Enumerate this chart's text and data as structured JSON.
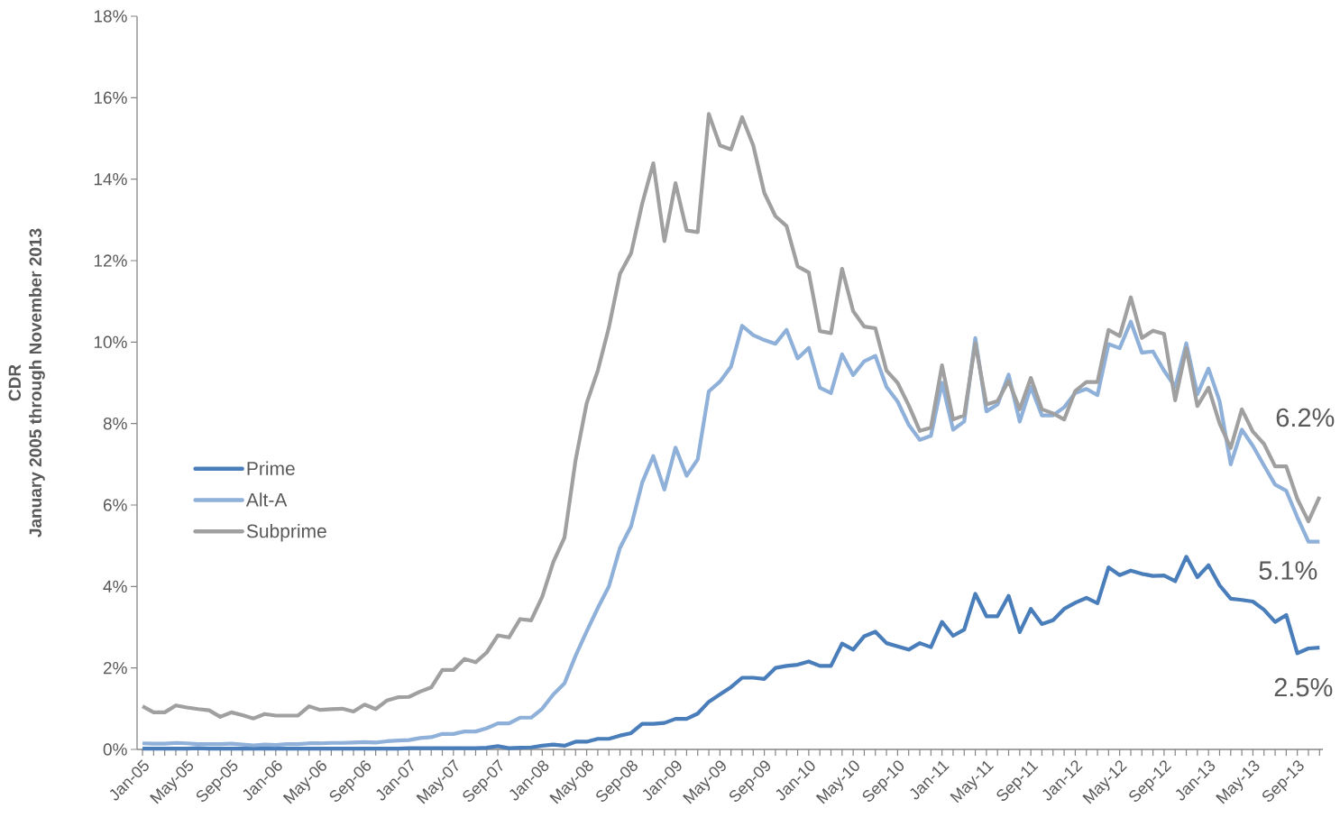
{
  "chart_data": {
    "type": "line",
    "ylabel": "CDR\nJanuary 2005 through November 2013",
    "categories": [
      "Jan-05",
      null,
      null,
      null,
      "May-05",
      null,
      null,
      null,
      "Sep-05",
      null,
      null,
      null,
      "Jan-06",
      null,
      null,
      null,
      "May-06",
      null,
      null,
      null,
      "Sep-06",
      null,
      null,
      null,
      "Jan-07",
      null,
      null,
      null,
      "May-07",
      null,
      null,
      null,
      "Sep-07",
      null,
      null,
      null,
      "Jan-08",
      null,
      null,
      null,
      "May-08",
      null,
      null,
      null,
      "Sep-08",
      null,
      null,
      null,
      "Jan-09",
      null,
      null,
      null,
      "May-09",
      null,
      null,
      null,
      "Sep-09",
      null,
      null,
      null,
      "Jan-10",
      null,
      null,
      null,
      "May-10",
      null,
      null,
      null,
      "Sep-10",
      null,
      null,
      null,
      "Jan-11",
      null,
      null,
      null,
      "May-11",
      null,
      null,
      null,
      "Sep-11",
      null,
      null,
      null,
      "Jan-12",
      null,
      null,
      null,
      "May-12",
      null,
      null,
      null,
      "Sep-12",
      null,
      null,
      null,
      "Jan-13",
      null,
      null,
      null,
      "May-13",
      null,
      null,
      null,
      "Sep-13",
      null,
      null
    ],
    "series": [
      {
        "name": "Prime",
        "color": "#4a7ebb",
        "values": [
          0.02,
          0.02,
          0.02,
          0.02,
          0.02,
          0.03,
          0.02,
          0.02,
          0.02,
          0.02,
          0.02,
          0.02,
          0.02,
          0.02,
          0.02,
          0.02,
          0.02,
          0.02,
          0.02,
          0.02,
          0.02,
          0.02,
          0.02,
          0.02,
          0.03,
          0.03,
          0.03,
          0.03,
          0.03,
          0.03,
          0.03,
          0.04,
          0.08,
          0.03,
          0.04,
          0.05,
          0.09,
          0.12,
          0.09,
          0.19,
          0.19,
          0.26,
          0.26,
          0.34,
          0.4,
          0.63,
          0.63,
          0.65,
          0.75,
          0.75,
          0.88,
          1.17,
          1.35,
          1.53,
          1.76,
          1.76,
          1.73,
          2.0,
          2.05,
          2.08,
          2.16,
          2.05,
          2.05,
          2.6,
          2.45,
          2.78,
          2.89,
          2.61,
          2.53,
          2.45,
          2.61,
          2.51,
          3.13,
          2.79,
          2.94,
          3.82,
          3.27,
          3.27,
          3.77,
          2.88,
          3.45,
          3.08,
          3.17,
          3.45,
          3.6,
          3.72,
          3.59,
          4.47,
          4.28,
          4.39,
          4.31,
          4.26,
          4.27,
          4.13,
          4.73,
          4.23,
          4.52,
          4.03,
          3.7,
          3.67,
          3.63,
          3.43,
          3.13,
          3.3,
          2.36,
          2.48,
          2.5
        ]
      },
      {
        "name": "Alt-A",
        "color": "#8eb0d9",
        "values": [
          0.15,
          0.14,
          0.14,
          0.16,
          0.15,
          0.13,
          0.13,
          0.13,
          0.14,
          0.12,
          0.1,
          0.12,
          0.11,
          0.13,
          0.13,
          0.15,
          0.15,
          0.16,
          0.16,
          0.17,
          0.18,
          0.17,
          0.2,
          0.22,
          0.23,
          0.28,
          0.3,
          0.38,
          0.38,
          0.44,
          0.44,
          0.52,
          0.64,
          0.64,
          0.78,
          0.78,
          1.0,
          1.35,
          1.62,
          2.3,
          2.9,
          3.47,
          4.0,
          4.95,
          5.48,
          6.55,
          7.2,
          6.38,
          7.41,
          6.72,
          7.12,
          8.79,
          9.03,
          9.4,
          10.4,
          10.17,
          10.05,
          9.96,
          10.3,
          9.6,
          9.86,
          8.88,
          8.75,
          9.7,
          9.19,
          9.53,
          9.66,
          8.9,
          8.54,
          7.97,
          7.6,
          7.7,
          9.0,
          7.85,
          8.05,
          10.1,
          8.3,
          8.47,
          9.2,
          8.05,
          8.9,
          8.2,
          8.2,
          8.4,
          8.75,
          8.85,
          8.7,
          9.95,
          9.85,
          10.5,
          9.74,
          9.77,
          9.3,
          8.9,
          9.97,
          8.72,
          9.35,
          8.55,
          7.0,
          7.85,
          7.45,
          6.97,
          6.5,
          6.35,
          5.7,
          5.1,
          5.1
        ]
      },
      {
        "name": "Subprime",
        "color": "#a0a0a0",
        "values": [
          1.06,
          0.91,
          0.91,
          1.08,
          1.03,
          0.99,
          0.96,
          0.8,
          0.91,
          0.84,
          0.76,
          0.87,
          0.83,
          0.83,
          0.83,
          1.06,
          0.97,
          0.99,
          1.0,
          0.93,
          1.1,
          0.99,
          1.2,
          1.28,
          1.29,
          1.42,
          1.52,
          1.95,
          1.95,
          2.22,
          2.14,
          2.38,
          2.8,
          2.75,
          3.2,
          3.17,
          3.75,
          4.6,
          5.2,
          7.1,
          8.5,
          9.3,
          10.36,
          11.68,
          12.18,
          13.4,
          14.39,
          12.48,
          13.9,
          12.74,
          12.7,
          15.6,
          14.83,
          14.73,
          15.52,
          14.83,
          13.66,
          13.09,
          12.85,
          11.86,
          11.71,
          10.27,
          10.22,
          11.8,
          10.76,
          10.38,
          10.34,
          9.3,
          9.0,
          8.45,
          7.82,
          7.9,
          9.43,
          8.1,
          8.2,
          9.97,
          8.47,
          8.55,
          9.05,
          8.35,
          9.12,
          8.35,
          8.25,
          8.1,
          8.8,
          9.02,
          9.02,
          10.3,
          10.15,
          11.1,
          10.1,
          10.28,
          10.2,
          8.57,
          9.85,
          8.43,
          8.88,
          8.0,
          7.4,
          8.35,
          7.8,
          7.5,
          6.95,
          6.95,
          6.15,
          5.6,
          6.2
        ]
      }
    ],
    "ylim": [
      0,
      18
    ],
    "yticks": [
      {
        "value": 0,
        "label": "0%"
      },
      {
        "value": 2,
        "label": "2%"
      },
      {
        "value": 4,
        "label": "4%"
      },
      {
        "value": 6,
        "label": "6%"
      },
      {
        "value": 8,
        "label": "8%"
      },
      {
        "value": 10,
        "label": "10%"
      },
      {
        "value": 12,
        "label": "12%"
      },
      {
        "value": 14,
        "label": "14%"
      },
      {
        "value": 16,
        "label": "16%"
      },
      {
        "value": 18,
        "label": "18%"
      }
    ],
    "annotations": [
      "6.2%",
      "5.1%",
      "2.5%"
    ],
    "grid": false,
    "legend": "left",
    "marker": "none",
    "line_style": "solid"
  }
}
